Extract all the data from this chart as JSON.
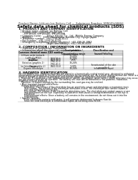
{
  "background_color": "#ffffff",
  "header_left": "Product Name: Lithium Ion Battery Cell",
  "header_right_line1": "Substance Number: SRP049-00010",
  "header_right_line2": "Establishment / Revision: Dec.7.2010",
  "title": "Safety data sheet for chemical products (SDS)",
  "section1_header": "1. PRODUCT AND COMPANY IDENTIFICATION",
  "section1_lines": [
    "  • Product name: Lithium Ion Battery Cell",
    "  • Product code: Cylindrical-type cell",
    "       SYF18500, SYF18500L, SYF18500A",
    "  • Company name:       Sanyo Electric Co., Ltd., Mobile Energy Company",
    "  • Address:              2001, Kamionjuku, Sumoto City, Hyogo, Japan",
    "  • Telephone number:  +81-(799-26-4111",
    "  • Fax number:  +81-1799-26-4120",
    "  • Emergency telephone number (daytime): +81-799-26-3962",
    "                                    (Night and holiday): +81-799-26-4101"
  ],
  "section2_header": "2. COMPOSITION / INFORMATION ON INGREDIENTS",
  "section2_intro": "  • Substance or preparation: Preparation",
  "section2_sub": "  • Information about the chemical nature of product:",
  "table_headers": [
    "Common chemical name /",
    "CAS number",
    "Concentration /\nConcentration range",
    "Classification and\nhazard labeling"
  ],
  "table_sub_header": "General name",
  "table_rows": [
    [
      "Lithium oxide tentacle\n(LixMn-Co(PO4))",
      "-",
      "30-60%",
      "-"
    ],
    [
      "Iron",
      "7439-89-6",
      "15-20%",
      "-"
    ],
    [
      "Aluminum",
      "7429-90-5",
      "2.5%",
      "-"
    ],
    [
      "Graphite\n(listed as graphite-1)\n(or listed as graphite-2)",
      "7782-10-5\n7782-40-3",
      "10-20%",
      "-"
    ],
    [
      "Copper",
      "7440-50-8",
      "5-10%",
      "Sensitization of the skin\ngroup No.2"
    ],
    [
      "Organic electrolyte",
      "-",
      "10-20%",
      "Inflammable liquid"
    ]
  ],
  "section3_header": "3. HAZARDS IDENTIFICATION",
  "section3_para1": "For this battery cell, chemical materials are stored in a hermetically sealed metal case, designed to withstand",
  "section3_para2": "temperatures generated by electro-chemical reaction during normal use. As a result, during normal use, there is no",
  "section3_para3": "physical danger of ignition or aspiration and therefor danger of hazardous materials leakage.",
  "section3_para4": "    However, if exposed to a fire, added mechanical shocks, decompose, when electric shock otherwise may occur,",
  "section3_para5": "the gas release vent will be operated. The battery cell case will be breached or fire-patterns. Hazardous",
  "section3_para6": "materials may be released.",
  "section3_para7": "    Moreover, if heated strongly by the surrounding fire, soot gas may be emitted.",
  "section3_bullet1": "  • Most important hazard and effects:",
  "section3_b1_lines": [
    "    Human health effects:",
    "        Inhalation: The release of the electrolyte has an anesthetic action and stimulates a respiratory tract.",
    "        Skin contact: The release of the electrolyte stimulates a skin. The electrolyte skin contact causes a",
    "        sore and stimulation on the skin.",
    "        Eye contact: The release of the electrolyte stimulates eyes. The electrolyte eye contact causes a sore",
    "        and stimulation on the eye. Especially, a substance that causes a strong inflammation of the eye is",
    "        contained.",
    "        Environmental effects: Since a battery cell remains in the environment, do not throw out it into the",
    "        environment."
  ],
  "section3_bullet2": "  • Specific hazards:",
  "section3_b2_lines": [
    "        If the electrolyte contacts with water, it will generate detrimental hydrogen fluoride.",
    "        Since the neat electrolyte is inflammable liquid, do not bring close to fire."
  ]
}
